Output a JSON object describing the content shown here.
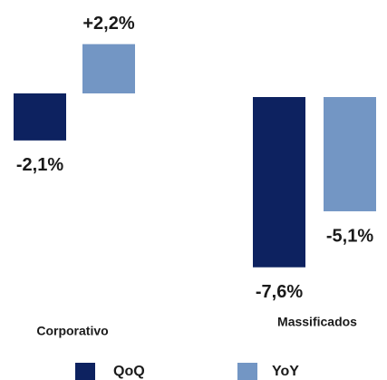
{
  "chart_data": {
    "type": "bar",
    "categories": [
      "Corporativo",
      "Massificados"
    ],
    "series": [
      {
        "name": "QoQ",
        "color": "#0d2260",
        "values": [
          -2.1,
          -7.6
        ],
        "value_labels": [
          "-2,1%",
          "-7,6%"
        ]
      },
      {
        "name": "YoY",
        "color": "#7396c4",
        "values": [
          2.2,
          -5.1
        ],
        "value_labels": [
          "+2,2%",
          "-5,1%"
        ]
      }
    ]
  }
}
